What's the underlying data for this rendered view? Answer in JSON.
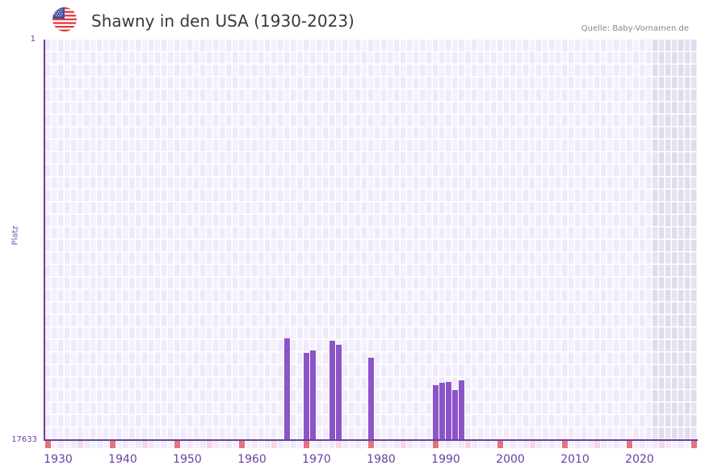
{
  "header": {
    "title": "Shawny in den USA (1930-2023)",
    "source": "Quelle: Baby-Vornamen.de",
    "flag_icon": "us-flag-icon"
  },
  "colors": {
    "bar": "#8a55c8",
    "axis": "#6a3fa0",
    "grid_bg_a": "#efeafa",
    "grid_bg_b": "#f4f1fc",
    "future_bg": "#e4e0ee",
    "decade_marker": "#e5737c",
    "half_decade_marker": "#f5d8e0"
  },
  "chart_data": {
    "type": "bar",
    "title": "Shawny in den USA (1930-2023)",
    "xlabel": "",
    "ylabel": "Platz",
    "y_inverted": true,
    "ylim": [
      17633,
      1
    ],
    "y_ticks": [
      "1",
      "17633"
    ],
    "x_range": [
      1928,
      2028
    ],
    "x_ticks": [
      "1930",
      "1940",
      "1950",
      "1960",
      "1970",
      "1980",
      "1990",
      "2000",
      "2010",
      "2020"
    ],
    "grid": true,
    "shaded_future_from": 2022,
    "categories": [
      1965,
      1968,
      1969,
      1972,
      1973,
      1978,
      1988,
      1989,
      1990,
      1991,
      1992
    ],
    "values": [
      13154,
      13793,
      13687,
      13261,
      13439,
      14006,
      15215,
      15108,
      15073,
      15428,
      15002
    ],
    "series": [
      {
        "name": "Platz",
        "values": [
          13154,
          13793,
          13687,
          13261,
          13439,
          14006,
          15215,
          15108,
          15073,
          15428,
          15002
        ]
      }
    ]
  }
}
